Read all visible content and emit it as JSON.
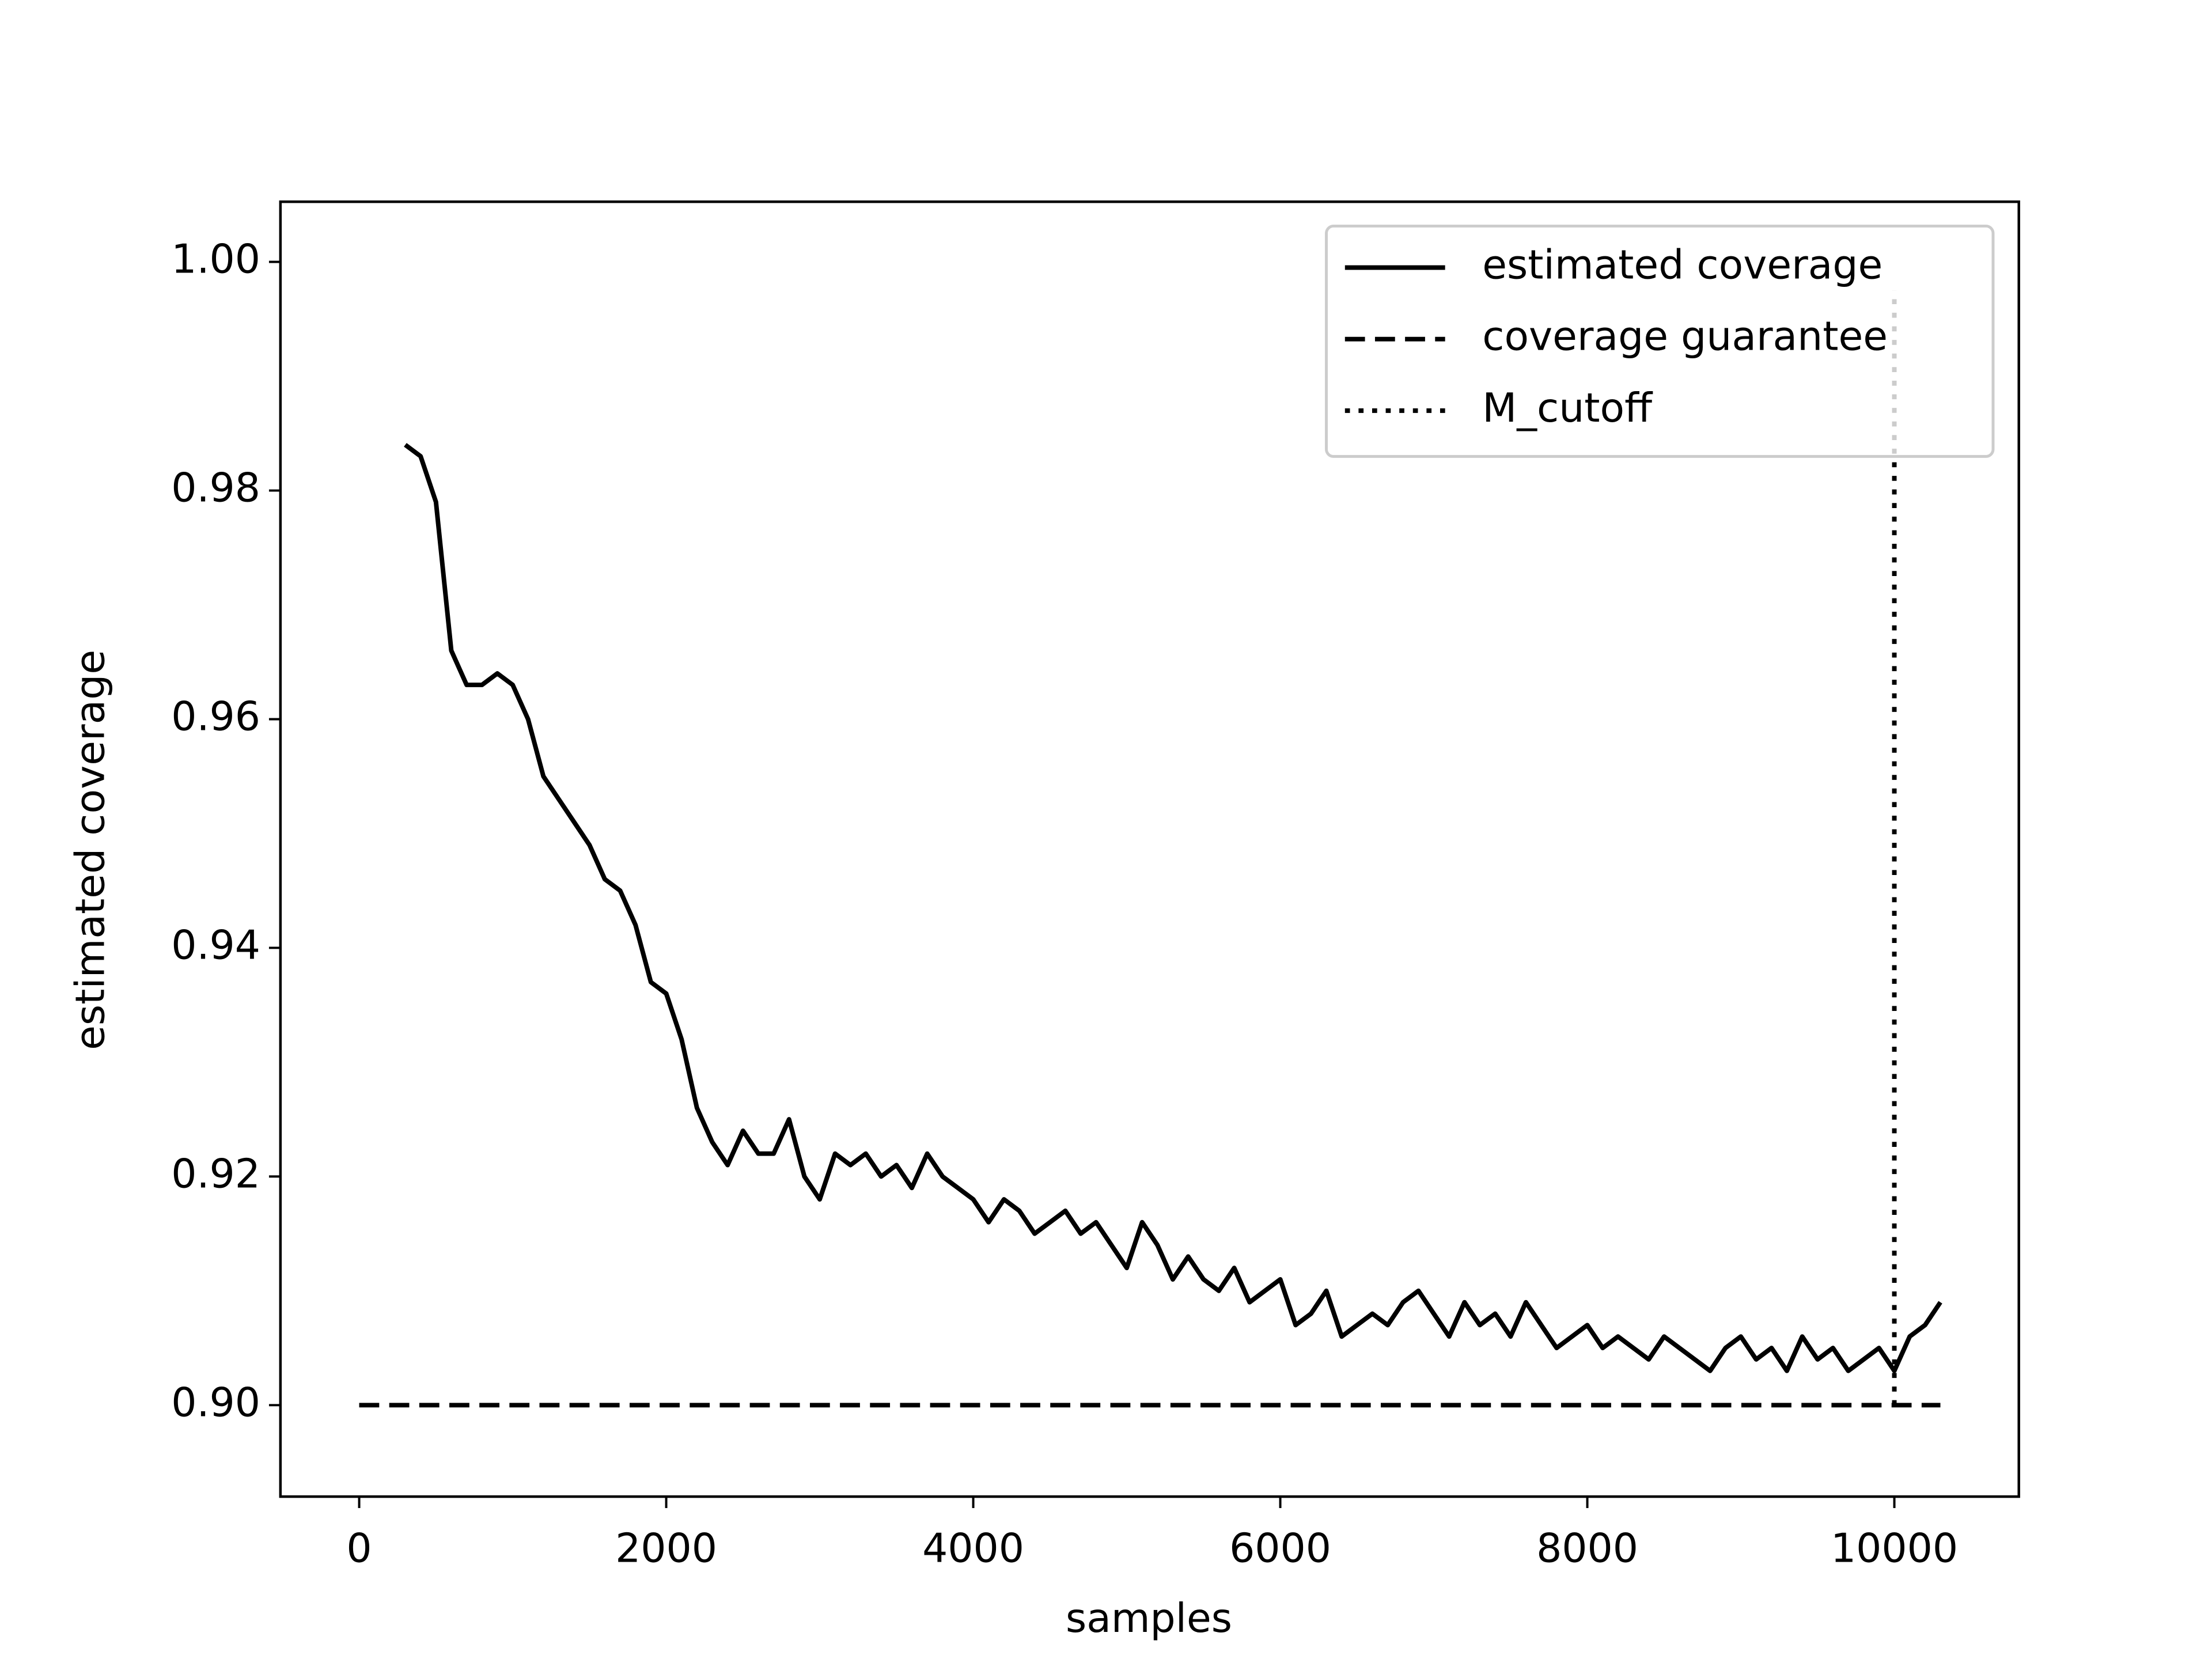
{
  "chart_data": {
    "type": "line",
    "xlabel": "samples",
    "ylabel": "estimated coverage",
    "xlim": [
      -513,
      10811
    ],
    "ylim": [
      0.892,
      1.00526
    ],
    "xticks": [
      0,
      2000,
      4000,
      6000,
      8000,
      10000
    ],
    "yticks": [
      {
        "value": 0.9,
        "label": "0.90"
      },
      {
        "value": 0.92,
        "label": "0.92"
      },
      {
        "value": 0.94,
        "label": "0.94"
      },
      {
        "value": 0.96,
        "label": "0.96"
      },
      {
        "value": 0.98,
        "label": "0.98"
      },
      {
        "value": 1.0,
        "label": "1.00"
      }
    ],
    "grid": false,
    "legend": "upper right",
    "series": [
      {
        "name": "estimated coverage",
        "color": "#000000",
        "style": "solid",
        "x": [
          300,
          400,
          500,
          600,
          700,
          800,
          900,
          1000,
          1100,
          1200,
          1300,
          1400,
          1500,
          1600,
          1700,
          1800,
          1900,
          2000,
          2100,
          2200,
          2300,
          2400,
          2500,
          2600,
          2700,
          2800,
          2900,
          3000,
          3100,
          3200,
          3300,
          3400,
          3500,
          3600,
          3700,
          3800,
          3900,
          4000,
          4100,
          4200,
          4300,
          4400,
          4500,
          4600,
          4700,
          4800,
          4900,
          5000,
          5100,
          5200,
          5300,
          5400,
          5500,
          5600,
          5700,
          5800,
          5900,
          6000,
          6100,
          6200,
          6300,
          6400,
          6500,
          6600,
          6700,
          6800,
          6900,
          7000,
          7100,
          7200,
          7300,
          7400,
          7500,
          7600,
          7700,
          7800,
          7900,
          8000,
          8100,
          8200,
          8300,
          8400,
          8500,
          8600,
          8700,
          8800,
          8900,
          9000,
          9100,
          9200,
          9300,
          9400,
          9500,
          9600,
          9700,
          9800,
          9900,
          10000,
          10100,
          10200,
          10300
        ],
        "values": [
          0.984,
          0.983,
          0.979,
          0.966,
          0.963,
          0.963,
          0.964,
          0.963,
          0.96,
          0.955,
          0.953,
          0.951,
          0.949,
          0.946,
          0.945,
          0.942,
          0.937,
          0.936,
          0.932,
          0.926,
          0.923,
          0.921,
          0.924,
          0.922,
          0.922,
          0.925,
          0.92,
          0.918,
          0.922,
          0.921,
          0.922,
          0.92,
          0.921,
          0.919,
          0.922,
          0.92,
          0.919,
          0.918,
          0.916,
          0.918,
          0.917,
          0.915,
          0.916,
          0.917,
          0.915,
          0.916,
          0.914,
          0.912,
          0.916,
          0.914,
          0.911,
          0.913,
          0.911,
          0.91,
          0.912,
          0.909,
          0.91,
          0.911,
          0.907,
          0.908,
          0.91,
          0.906,
          0.907,
          0.908,
          0.907,
          0.909,
          0.91,
          0.908,
          0.906,
          0.909,
          0.907,
          0.908,
          0.906,
          0.909,
          0.907,
          0.905,
          0.906,
          0.907,
          0.905,
          0.906,
          0.905,
          0.904,
          0.906,
          0.905,
          0.904,
          0.903,
          0.905,
          0.906,
          0.904,
          0.905,
          0.903,
          0.906,
          0.904,
          0.905,
          0.903,
          0.904,
          0.905,
          0.903,
          0.906,
          0.907,
          0.909
        ]
      },
      {
        "name": "coverage guarantee",
        "color": "#000000",
        "style": "dashed",
        "x": [
          0,
          10300
        ],
        "values": [
          0.9,
          0.9
        ]
      },
      {
        "name": "M_cutoff",
        "color": "#000000",
        "style": "dotted",
        "x": [
          10000,
          10000
        ],
        "values": [
          0.9,
          0.9975
        ]
      }
    ]
  }
}
